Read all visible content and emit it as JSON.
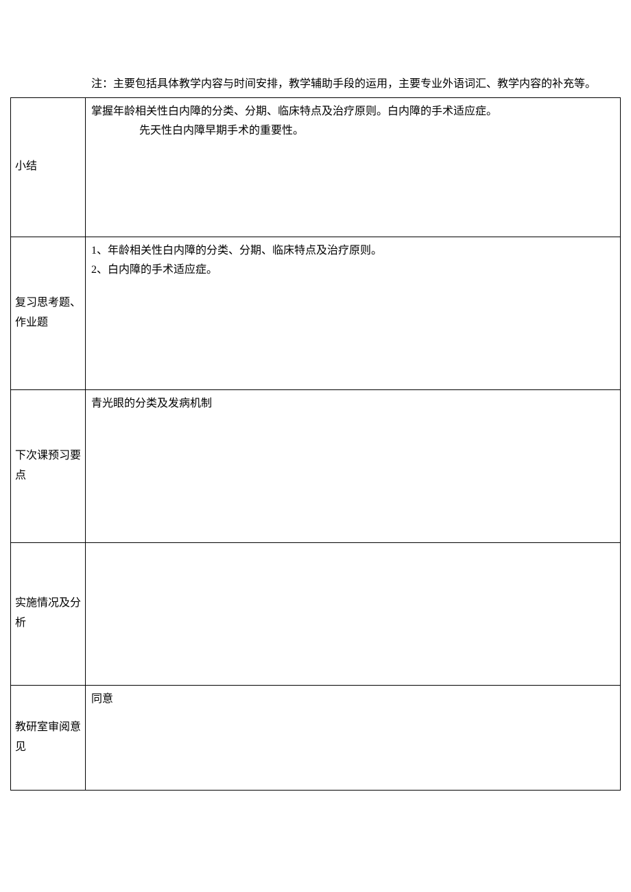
{
  "note_text": "注：主要包括具体教学内容与时间安排，教学辅助手段的运用，主要专业外语词汇、教学内容的补充等。",
  "rows": [
    {
      "label": "小结",
      "line1": "掌握年龄相关性白内障的分类、分期、临床特点及治疗原则。白内障的手术适应症。",
      "line2": "先天性白内障早期手术的重要性。"
    },
    {
      "label": "复习思考题、作业题",
      "line1": "1、年龄相关性白内障的分类、分期、临床特点及治疗原则。",
      "line2": "2、白内障的手术适应症。"
    },
    {
      "label": "下次课预习要点",
      "line1": "青光眼的分类及发病机制"
    },
    {
      "label": "实施情况及分析",
      "line1": ""
    },
    {
      "label": "教研室审阅意见",
      "line1": "同意"
    }
  ]
}
